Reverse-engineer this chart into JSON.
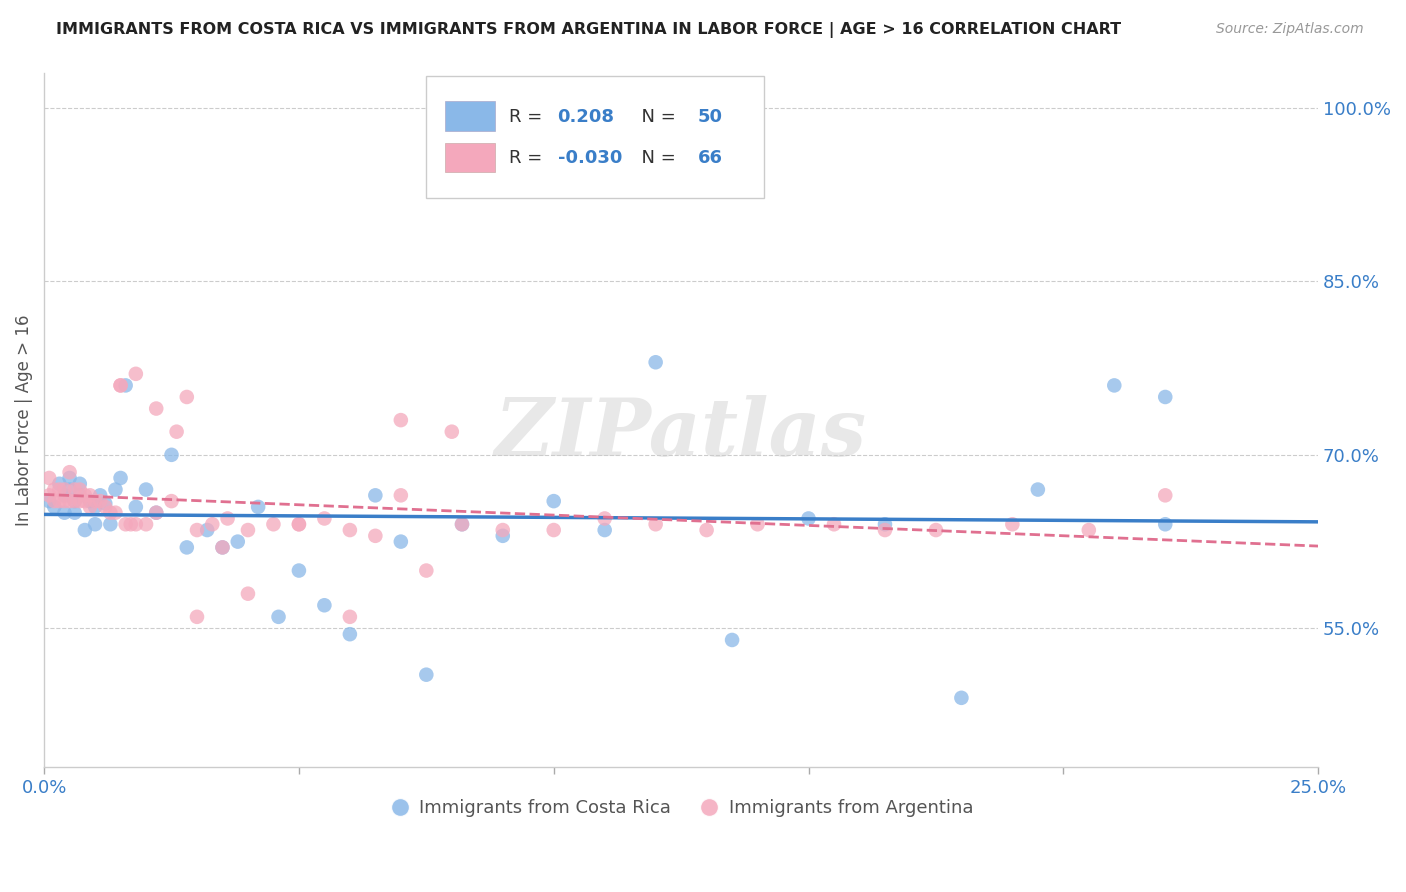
{
  "title": "IMMIGRANTS FROM COSTA RICA VS IMMIGRANTS FROM ARGENTINA IN LABOR FORCE | AGE > 16 CORRELATION CHART",
  "source": "Source: ZipAtlas.com",
  "ylabel": "In Labor Force | Age > 16",
  "xlim": [
    0.0,
    0.25
  ],
  "ylim": [
    0.43,
    1.03
  ],
  "right_yticks": [
    1.0,
    0.85,
    0.7,
    0.55
  ],
  "right_yticklabels": [
    "100.0%",
    "85.0%",
    "70.0%",
    "55.0%"
  ],
  "background_color": "#ffffff",
  "grid_color": "#cccccc",
  "watermark": "ZIPatlas",
  "cr_color": "#8ab8e8",
  "arg_color": "#f4a8bc",
  "cr_line_color": "#3a7ec8",
  "arg_line_color": "#e07090",
  "cr_R": 0.208,
  "cr_N": 50,
  "arg_R": -0.03,
  "arg_N": 66,
  "cr_x": [
    0.001,
    0.002,
    0.003,
    0.004,
    0.004,
    0.005,
    0.005,
    0.006,
    0.006,
    0.007,
    0.007,
    0.008,
    0.009,
    0.01,
    0.01,
    0.011,
    0.012,
    0.013,
    0.014,
    0.015,
    0.016,
    0.018,
    0.02,
    0.022,
    0.025,
    0.028,
    0.032,
    0.035,
    0.038,
    0.042,
    0.046,
    0.05,
    0.055,
    0.06,
    0.065,
    0.07,
    0.075,
    0.082,
    0.09,
    0.1,
    0.11,
    0.12,
    0.135,
    0.15,
    0.165,
    0.18,
    0.195,
    0.21,
    0.22,
    0.22
  ],
  "cr_y": [
    0.66,
    0.655,
    0.675,
    0.665,
    0.65,
    0.68,
    0.67,
    0.66,
    0.65,
    0.675,
    0.665,
    0.635,
    0.66,
    0.655,
    0.64,
    0.665,
    0.658,
    0.64,
    0.67,
    0.68,
    0.76,
    0.655,
    0.67,
    0.65,
    0.7,
    0.62,
    0.635,
    0.62,
    0.625,
    0.655,
    0.56,
    0.6,
    0.57,
    0.545,
    0.665,
    0.625,
    0.51,
    0.64,
    0.63,
    0.66,
    0.635,
    0.78,
    0.54,
    0.645,
    0.64,
    0.49,
    0.67,
    0.76,
    0.75,
    0.64
  ],
  "arg_x": [
    0.001,
    0.001,
    0.002,
    0.002,
    0.003,
    0.003,
    0.004,
    0.004,
    0.005,
    0.005,
    0.006,
    0.006,
    0.007,
    0.007,
    0.008,
    0.008,
    0.009,
    0.009,
    0.01,
    0.011,
    0.012,
    0.013,
    0.014,
    0.015,
    0.016,
    0.017,
    0.018,
    0.02,
    0.022,
    0.025,
    0.028,
    0.03,
    0.033,
    0.036,
    0.04,
    0.045,
    0.05,
    0.055,
    0.06,
    0.065,
    0.07,
    0.075,
    0.082,
    0.09,
    0.1,
    0.11,
    0.12,
    0.13,
    0.14,
    0.155,
    0.165,
    0.175,
    0.19,
    0.205,
    0.22,
    0.015,
    0.018,
    0.022,
    0.026,
    0.03,
    0.035,
    0.04,
    0.05,
    0.06,
    0.07,
    0.08
  ],
  "arg_y": [
    0.665,
    0.68,
    0.67,
    0.66,
    0.66,
    0.67,
    0.67,
    0.66,
    0.685,
    0.66,
    0.66,
    0.67,
    0.67,
    0.66,
    0.66,
    0.665,
    0.665,
    0.655,
    0.66,
    0.66,
    0.655,
    0.65,
    0.65,
    0.76,
    0.64,
    0.64,
    0.64,
    0.64,
    0.65,
    0.66,
    0.75,
    0.635,
    0.64,
    0.645,
    0.635,
    0.64,
    0.64,
    0.645,
    0.635,
    0.63,
    0.665,
    0.6,
    0.64,
    0.635,
    0.635,
    0.645,
    0.64,
    0.635,
    0.64,
    0.64,
    0.635,
    0.635,
    0.64,
    0.635,
    0.665,
    0.76,
    0.77,
    0.74,
    0.72,
    0.56,
    0.62,
    0.58,
    0.64,
    0.56,
    0.73,
    0.72
  ]
}
